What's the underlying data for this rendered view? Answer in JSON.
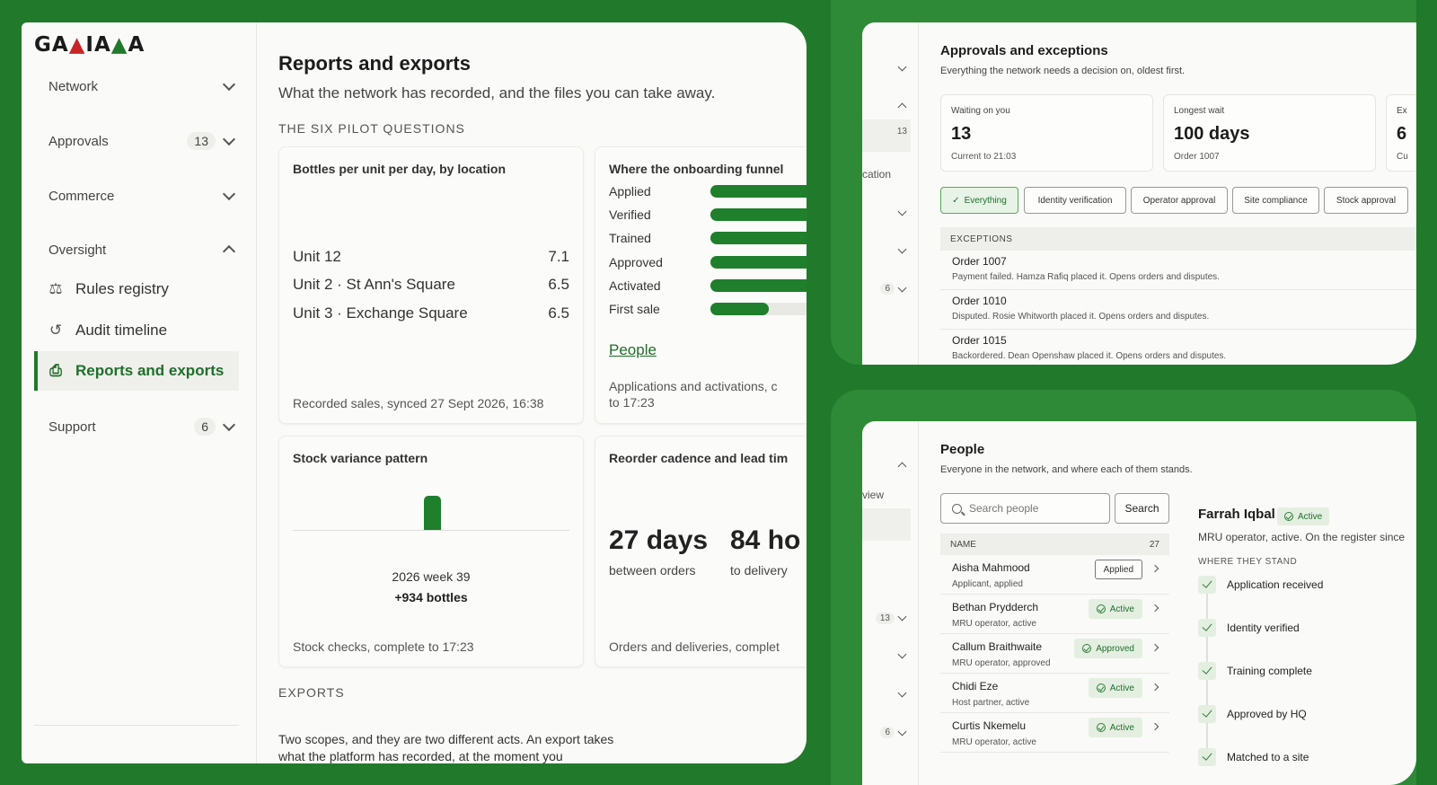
{
  "brand": {
    "logo": "GAZIANA"
  },
  "sidebar": {
    "groups": [
      {
        "label": "Network"
      },
      {
        "label": "Approvals",
        "count": "13"
      },
      {
        "label": "Commerce"
      },
      {
        "label": "Oversight"
      },
      {
        "label": "Support",
        "count": "6"
      }
    ],
    "oversight_items": [
      {
        "label": "Rules registry",
        "icon": "scales-icon"
      },
      {
        "label": "Audit timeline",
        "icon": "history-icon"
      },
      {
        "label": "Reports and exports",
        "icon": "file-download-icon",
        "active": true
      }
    ]
  },
  "reports": {
    "title": "Reports and exports",
    "lead": "What the network has recorded, and the files you can take away.",
    "section_caption": "THE SIX PILOT QUESTIONS",
    "card_bottles": {
      "title": "Bottles per unit per day, by location",
      "rows": [
        {
          "name": "Unit 12",
          "value": "7.1"
        },
        {
          "name": "Unit 2 · St Ann's Square",
          "value": "6.5"
        },
        {
          "name": "Unit 3 · Exchange Square",
          "value": "6.5"
        }
      ],
      "footer": "Recorded sales, synced 27 Sept 2026, 16:38"
    },
    "card_funnel": {
      "title": "Where the onboarding funnel",
      "stages": [
        {
          "label": "Applied",
          "fill": 1.0
        },
        {
          "label": "Verified",
          "fill": 1.0
        },
        {
          "label": "Trained",
          "fill": 1.0
        },
        {
          "label": "Approved",
          "fill": 1.0
        },
        {
          "label": "Activated",
          "fill": 1.0
        },
        {
          "label": "First sale",
          "fill": 0.35
        }
      ],
      "link": "People",
      "footer_line1": "Applications and activations, c",
      "footer_line2": "to 17:23"
    },
    "card_variance": {
      "title": "Stock variance pattern",
      "week": "2026 week 39",
      "delta": "+934 bottles",
      "footer": "Stock checks, complete to 17:23"
    },
    "card_reorder": {
      "title": "Reorder cadence and lead tim",
      "metric1_value": "27 days",
      "metric1_label": "between orders",
      "metric2_value": "84 ho",
      "metric2_label": "to delivery",
      "footer": "Orders and deliveries, complet"
    },
    "exports_caption": "EXPORTS",
    "exports_text": "Two scopes, and they are two different acts. An export takes what the platform has recorded, at the moment you"
  },
  "approvals": {
    "sidebar_fragments": {
      "count_approvals": "13",
      "location_text": "cation",
      "count_support": "6"
    },
    "title": "Approvals and exceptions",
    "subtitle": "Everything the network needs a decision on, oldest first.",
    "stats": [
      {
        "label": "Waiting on you",
        "value": "13",
        "sub": "Current to 21:03"
      },
      {
        "label": "Longest wait",
        "value": "100 days",
        "sub": "Order 1007"
      },
      {
        "label": "Ex",
        "value": "6",
        "sub": "Cu"
      }
    ],
    "filters": [
      "Everything",
      "Identity verification",
      "Operator approval",
      "Site compliance",
      "Stock approval"
    ],
    "exceptions_header": "EXCEPTIONS",
    "exceptions": [
      {
        "title": "Order 1007",
        "desc": "Payment failed. Hamza Rafiq placed it. Opens orders and disputes."
      },
      {
        "title": "Order 1010",
        "desc": "Disputed. Rosie Whitworth placed it. Opens orders and disputes."
      },
      {
        "title": "Order 1015",
        "desc": "Backordered. Dean Openshaw placed it. Opens orders and disputes."
      }
    ]
  },
  "people": {
    "sidebar_fragments": {
      "view_text": "view",
      "count_approvals": "13",
      "count_support": "6"
    },
    "title": "People",
    "subtitle": "Everyone in the network, and where each of them stands.",
    "search_placeholder": "Search people",
    "search_button": "Search",
    "col_name": "NAME",
    "total": "27",
    "rows": [
      {
        "name": "Aisha Mahmood",
        "role": "Applicant, applied",
        "status": "Applied",
        "style": "plain"
      },
      {
        "name": "Bethan Prydderch",
        "role": "MRU operator, active",
        "status": "Active",
        "style": "green"
      },
      {
        "name": "Callum Braithwaite",
        "role": "MRU operator, approved",
        "status": "Approved",
        "style": "green"
      },
      {
        "name": "Chidi Eze",
        "role": "Host partner, active",
        "status": "Active",
        "style": "green"
      },
      {
        "name": "Curtis Nkemelu",
        "role": "MRU operator, active",
        "status": "Active",
        "style": "green"
      }
    ],
    "detail": {
      "name": "Farrah Iqbal",
      "status": "Active",
      "desc": "MRU operator, active. On the register since",
      "caption": "WHERE THEY STAND",
      "steps": [
        "Application received",
        "Identity verified",
        "Training complete",
        "Approved by HQ",
        "Matched to a site"
      ]
    }
  }
}
